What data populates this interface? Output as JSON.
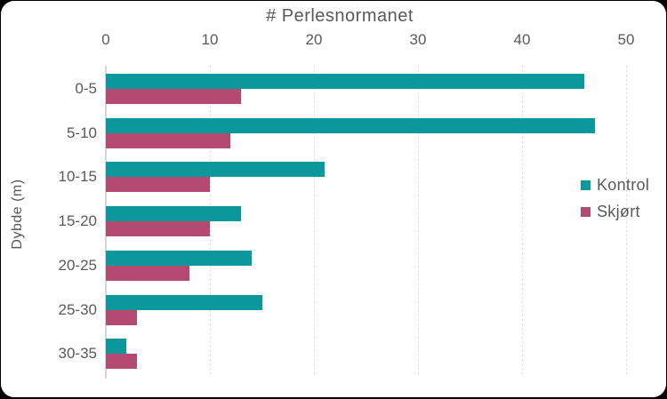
{
  "panel": {
    "background_color": "#FFFFFF",
    "outer_color": "#000000"
  },
  "chart_data": {
    "type": "bar",
    "orientation": "horizontal",
    "title": "# Perlesnormanet",
    "xlabel": "# Perlesnormanet",
    "ylabel": "Dybde (m)",
    "categories": [
      "0-5",
      "5-10",
      "10-15",
      "15-20",
      "20-25",
      "25-30",
      "30-35"
    ],
    "series": [
      {
        "name": "Kontrol",
        "color": "#0A989C",
        "values": [
          46,
          47,
          21,
          13,
          14,
          15,
          2
        ]
      },
      {
        "name": "Skjørt",
        "color": "#B44A72",
        "values": [
          13,
          12,
          10,
          10,
          8,
          3,
          3
        ]
      }
    ],
    "xlim": [
      0,
      50
    ],
    "xticks": [
      0,
      10,
      20,
      30,
      40,
      50
    ],
    "grid": "vertical-dotted",
    "legend_position": "right",
    "text_color": "#595959",
    "gridline_color": "#D9D9D9",
    "axis_line_color": "#D6D6D6"
  }
}
